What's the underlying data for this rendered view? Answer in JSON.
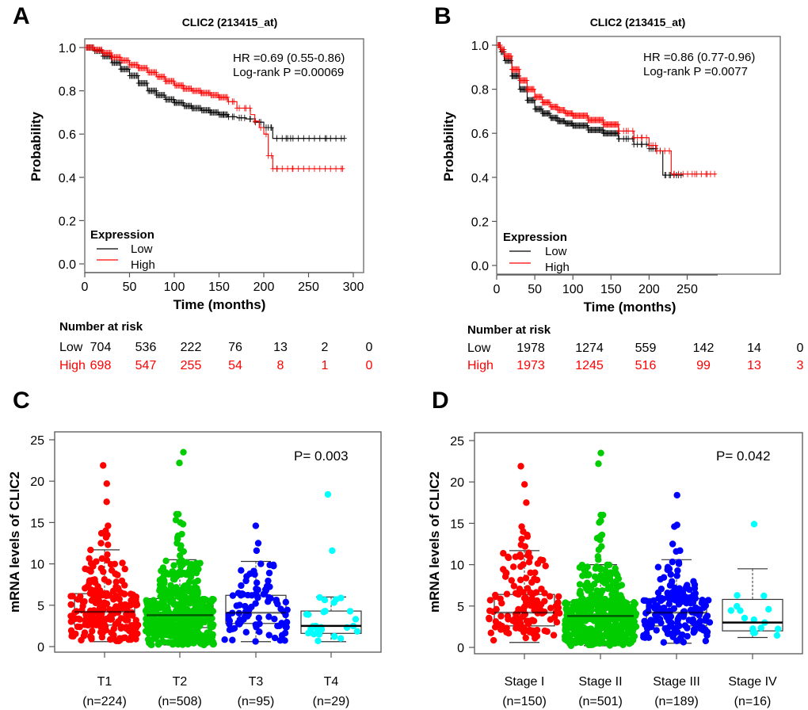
{
  "figure": {
    "panels": [
      "A",
      "B",
      "C",
      "D"
    ]
  },
  "chart_data": [
    {
      "panel": "A",
      "type": "line",
      "subtype": "kaplan-meier",
      "title": "CLIC2 (213415_at)",
      "xlabel": "Time (months)",
      "ylabel": "Probability",
      "xlim": [
        0,
        300
      ],
      "ylim": [
        0,
        1
      ],
      "xticks": [
        "0",
        "50",
        "100",
        "150",
        "200",
        "250",
        "300"
      ],
      "yticks": [
        "0.0",
        "0.2",
        "0.4",
        "0.6",
        "0.8",
        "1.0"
      ],
      "annotation": [
        "HR =0.69 (0.55-0.86)",
        "Log-rank P =0.00069"
      ],
      "legend": {
        "title": "Expression",
        "position": "bottom-left",
        "items": [
          {
            "label": "Low",
            "color": "#000000"
          },
          {
            "label": "High",
            "color": "#ff0000"
          }
        ]
      },
      "series": [
        {
          "name": "Low",
          "color": "#000000",
          "x": [
            0,
            10,
            20,
            30,
            40,
            50,
            60,
            70,
            80,
            90,
            100,
            110,
            120,
            130,
            140,
            150,
            160,
            170,
            180,
            190,
            200,
            210,
            250,
            290
          ],
          "y": [
            1.0,
            0.985,
            0.96,
            0.93,
            0.9,
            0.87,
            0.835,
            0.8,
            0.78,
            0.76,
            0.745,
            0.73,
            0.72,
            0.71,
            0.7,
            0.69,
            0.68,
            0.675,
            0.67,
            0.655,
            0.63,
            0.58,
            0.58,
            0.58
          ],
          "censor_x": [
            40,
            60,
            80,
            100,
            120,
            140,
            155,
            165,
            175,
            185,
            195,
            205,
            208,
            225,
            230,
            270,
            290
          ]
        },
        {
          "name": "High",
          "color": "#ff0000",
          "x": [
            0,
            10,
            20,
            30,
            40,
            50,
            60,
            70,
            80,
            90,
            100,
            110,
            120,
            130,
            140,
            150,
            160,
            170,
            175,
            185,
            190,
            195,
            200,
            205,
            210,
            288
          ],
          "y": [
            1.0,
            0.99,
            0.975,
            0.955,
            0.94,
            0.92,
            0.905,
            0.885,
            0.865,
            0.845,
            0.825,
            0.81,
            0.8,
            0.79,
            0.78,
            0.77,
            0.75,
            0.72,
            0.72,
            0.69,
            0.66,
            0.63,
            0.6,
            0.5,
            0.44,
            0.44
          ],
          "censor_x": [
            30,
            60,
            90,
            110,
            130,
            150,
            165,
            170,
            180,
            190,
            205,
            210,
            215,
            232,
            288
          ]
        }
      ],
      "risk_table": {
        "title": "Number at risk",
        "times": [
          0,
          50,
          100,
          150,
          200,
          250,
          300
        ],
        "rows": [
          {
            "label": "Low",
            "color": "#000000",
            "values": [
              "704",
              "536",
              "222",
              "76",
              "13",
              "2",
              "0"
            ]
          },
          {
            "label": "High",
            "color": "#ff0000",
            "values": [
              "698",
              "547",
              "255",
              "54",
              "8",
              "1",
              "0"
            ]
          }
        ]
      }
    },
    {
      "panel": "B",
      "type": "line",
      "subtype": "kaplan-meier",
      "title": "CLIC2 (213415_at)",
      "xlabel": "Time (months)",
      "ylabel": "Probability",
      "xlim": [
        0,
        290
      ],
      "ylim": [
        0,
        1
      ],
      "xticks": [
        "0",
        "50",
        "100",
        "150",
        "200",
        "250"
      ],
      "yticks": [
        "0.0",
        "0.2",
        "0.4",
        "0.6",
        "0.8",
        "1.0"
      ],
      "annotation": [
        "HR =0.86 (0.77-0.96)",
        "Log-rank P =0.0077"
      ],
      "legend": {
        "title": "Expression",
        "position": "bottom-left",
        "items": [
          {
            "label": "Low",
            "color": "#000000"
          },
          {
            "label": "High",
            "color": "#ff0000"
          }
        ]
      },
      "series": [
        {
          "name": "Low",
          "color": "#000000",
          "x": [
            0,
            5,
            10,
            20,
            30,
            40,
            50,
            60,
            70,
            80,
            90,
            100,
            120,
            140,
            160,
            180,
            200,
            210,
            218,
            245
          ],
          "y": [
            1.0,
            0.97,
            0.93,
            0.86,
            0.8,
            0.75,
            0.71,
            0.69,
            0.67,
            0.655,
            0.645,
            0.635,
            0.615,
            0.6,
            0.575,
            0.55,
            0.53,
            0.52,
            0.41,
            0.41
          ],
          "censor_x": [
            20,
            40,
            60,
            80,
            100,
            120,
            140,
            160,
            170,
            180,
            190,
            200,
            205,
            210,
            222,
            228,
            236,
            242
          ]
        },
        {
          "name": "High",
          "color": "#ff0000",
          "x": [
            0,
            5,
            10,
            20,
            30,
            40,
            50,
            60,
            70,
            80,
            90,
            100,
            120,
            140,
            160,
            180,
            200,
            210,
            229,
            288
          ],
          "y": [
            1.0,
            0.98,
            0.95,
            0.89,
            0.84,
            0.8,
            0.765,
            0.74,
            0.72,
            0.705,
            0.69,
            0.68,
            0.66,
            0.64,
            0.61,
            0.58,
            0.545,
            0.52,
            0.415,
            0.415
          ],
          "censor_x": [
            20,
            40,
            60,
            80,
            100,
            120,
            140,
            160,
            170,
            180,
            190,
            200,
            205,
            210,
            233,
            260,
            276,
            286
          ]
        }
      ],
      "risk_table": {
        "title": "Number at risk",
        "times": [
          0,
          50,
          100,
          150,
          200,
          250
        ],
        "rows": [
          {
            "label": "Low",
            "color": "#000000",
            "values": [
              "1978",
              "1274",
              "559",
              "142",
              "14",
              "0"
            ]
          },
          {
            "label": "High",
            "color": "#ff0000",
            "values": [
              "1973",
              "1245",
              "516",
              "99",
              "13",
              "3"
            ]
          }
        ]
      }
    },
    {
      "panel": "C",
      "type": "scatter",
      "subtype": "beeswarm-boxplot",
      "title": "",
      "xlabel": "",
      "ylabel": "mRNA levels of CLIC2",
      "ylim": [
        0,
        25
      ],
      "yticks": [
        "0",
        "5",
        "10",
        "15",
        "20",
        "25"
      ],
      "annotation": "P= 0.003",
      "categories": [
        {
          "label": "T1",
          "n_label": "(n=224)",
          "n": 224,
          "color": "#ff0000",
          "box": {
            "min": 0.6,
            "q1": 2.6,
            "median": 4.2,
            "q3": 6.4,
            "max": 11.7
          },
          "outliers": [
            12.3,
            12.5,
            13.2,
            13.5,
            13.7,
            14.0,
            14.6,
            17.5,
            19.7,
            21.9
          ]
        },
        {
          "label": "T2",
          "n_label": "(n=508)",
          "n": 508,
          "color": "#00cc00",
          "box": {
            "min": 0.2,
            "q1": 2.3,
            "median": 3.8,
            "q3": 5.8,
            "max": 10.5
          },
          "outliers": [
            11.0,
            11.5,
            11.8,
            12.2,
            12.5,
            13.0,
            13.2,
            13.4,
            13.6,
            14.8,
            15.0,
            15.3,
            16.0,
            16.0,
            22.2,
            23.5
          ]
        },
        {
          "label": "T3",
          "n_label": "(n=95)",
          "n": 95,
          "color": "#0000ff",
          "box": {
            "min": 0.6,
            "q1": 2.8,
            "median": 4.1,
            "q3": 6.2,
            "max": 10.3
          },
          "outliers": [
            11.6,
            12.5,
            14.6
          ]
        },
        {
          "label": "T4",
          "n_label": "(n=29)",
          "n": 29,
          "color": "#00ffff",
          "box": {
            "min": 0.6,
            "q1": 1.6,
            "median": 2.5,
            "q3": 4.3,
            "max": 6.0
          },
          "outliers": [
            11.6,
            18.4
          ]
        }
      ]
    },
    {
      "panel": "D",
      "type": "scatter",
      "subtype": "beeswarm-boxplot",
      "title": "",
      "xlabel": "",
      "ylabel": "mRNA levels of CLIC2",
      "ylim": [
        0,
        25
      ],
      "yticks": [
        "0",
        "5",
        "10",
        "15",
        "20",
        "25"
      ],
      "annotation": "P= 0.042",
      "categories": [
        {
          "label": "Stage I",
          "n_label": "(n=150)",
          "n": 150,
          "color": "#ff0000",
          "box": {
            "min": 0.6,
            "q1": 2.6,
            "median": 4.2,
            "q3": 6.4,
            "max": 11.7
          },
          "outliers": [
            12.2,
            12.4,
            13.1,
            13.4,
            13.6,
            14.0,
            14.6,
            17.5,
            19.7,
            21.9
          ]
        },
        {
          "label": "Stage II",
          "n_label": "(n=501)",
          "n": 501,
          "color": "#00cc00",
          "box": {
            "min": 0.2,
            "q1": 2.3,
            "median": 3.8,
            "q3": 5.5,
            "max": 10.0
          },
          "outliers": [
            10.6,
            11.0,
            11.8,
            12.2,
            13.0,
            13.2,
            13.4,
            13.6,
            15.1,
            15.3,
            16.0,
            16.0,
            22.2,
            23.5
          ]
        },
        {
          "label": "Stage III",
          "n_label": "(n=189)",
          "n": 189,
          "color": "#0000ff",
          "box": {
            "min": 0.5,
            "q1": 2.6,
            "median": 4.2,
            "q3": 5.9,
            "max": 10.6
          },
          "outliers": [
            11.6,
            11.7,
            12.5,
            14.6,
            14.8,
            18.4
          ]
        },
        {
          "label": "Stage IV",
          "n_label": "(n=16)",
          "n": 16,
          "color": "#00ffff",
          "box": {
            "min": 1.2,
            "q1": 2.0,
            "median": 3.0,
            "q3": 5.8,
            "max": 9.5
          },
          "outliers": [
            14.9
          ]
        }
      ]
    }
  ]
}
